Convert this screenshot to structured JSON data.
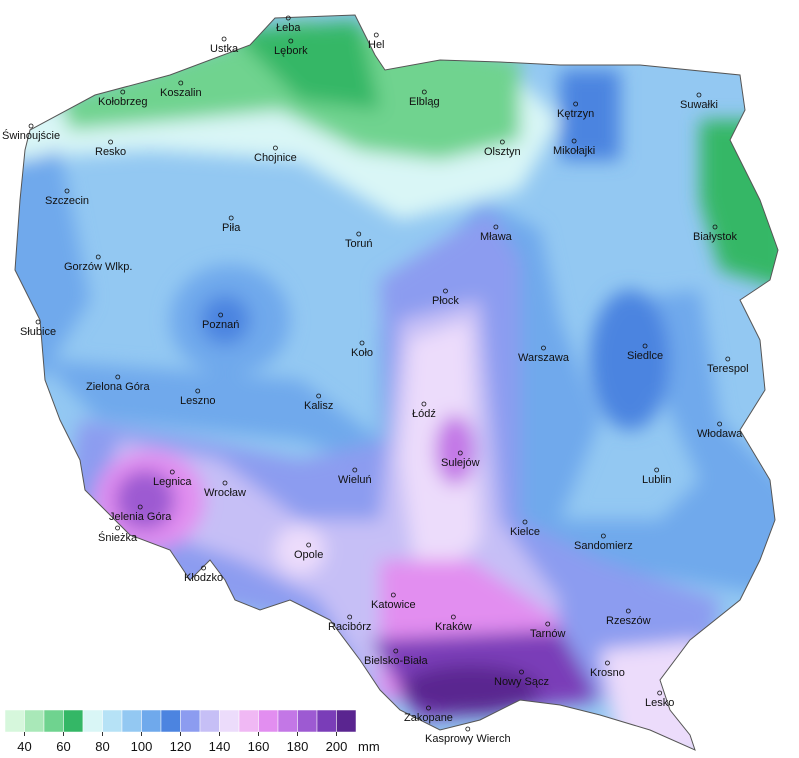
{
  "map": {
    "cities": [
      "Łeba",
      "Hel",
      "Ustka",
      "Lębork",
      "Kołobrzeg",
      "Koszalin",
      "Elbląg",
      "Kętrzyn",
      "Suwałki",
      "Świnoujście",
      "Resko",
      "Chojnice",
      "Olsztyn",
      "Mikołajki",
      "Szczecin",
      "Piła",
      "Toruń",
      "Mława",
      "Białystok",
      "Gorzów Wlkp.",
      "Płock",
      "Poznań",
      "Słubice",
      "Koło",
      "Warszawa",
      "Siedlce",
      "Terespol",
      "Zielona Góra",
      "Leszno",
      "Kalisz",
      "Łódź",
      "Włodawa",
      "Sulejów",
      "Legnica",
      "Wrocław",
      "Wieluń",
      "Lublin",
      "Jelenia Góra",
      "Śnieżka",
      "Kielce",
      "Sandomierz",
      "Opole",
      "Kłodzko",
      "Katowice",
      "Racibórz",
      "Kraków",
      "Tarnów",
      "Rzeszów",
      "Bielsko-Biała",
      "Krosno",
      "Nowy Sącz",
      "Lesko",
      "Zakopane",
      "Kasprowy Wierch"
    ],
    "legend": {
      "range": [
        30,
        210
      ],
      "colors": [
        "#d6f7dc",
        "#a9e8b8",
        "#6fd38f",
        "#34b766",
        "#d9f6f6",
        "#b6e2f6",
        "#93c8f2",
        "#6fa9ec",
        "#4c84e0",
        "#8c9cf0",
        "#c6bff6",
        "#ecdcfb",
        "#f0b8f4",
        "#e28ef0",
        "#c377e6",
        "#9d5ad2",
        "#7a3db8",
        "#5a2590"
      ],
      "ticks": [
        40,
        60,
        80,
        100,
        120,
        140,
        160,
        180,
        200
      ],
      "unit": "mm"
    }
  }
}
